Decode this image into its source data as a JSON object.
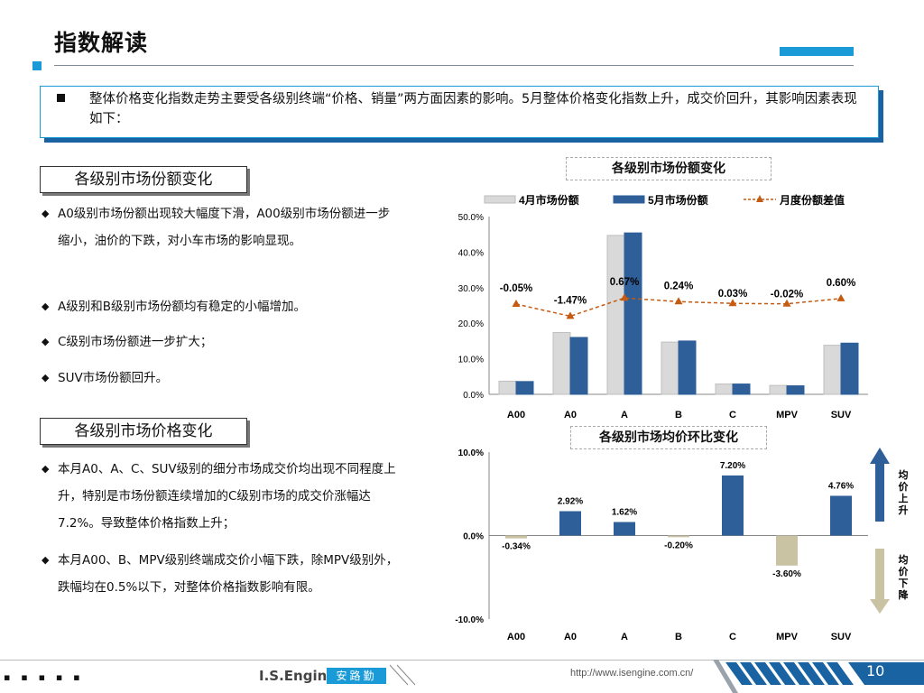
{
  "page": {
    "title": "指数解读",
    "summary": "整体价格变化指数走势主要受各级别终端“价格、销量”两方面因素的影响。5月整体价格变化指数上升，成交价回升，其影响因素表现如下："
  },
  "section1": {
    "heading": "各级别市场份额变化",
    "bullets": [
      "A0级别市场份额出现较大幅度下滑，A00级别市场份额进一步缩小，油价的下跌，对小车市场的影响显现。",
      "A级别和B级别市场份额均有稳定的小幅增加。",
      "C级别市场份额进一步扩大；",
      "SUV市场份额回升。"
    ]
  },
  "section2": {
    "heading": "各级别市场价格变化",
    "bullets": [
      "本月A0、A、C、SUV级别的细分市场成交价均出现不同程度上升，特别是市场份额连续增加的C级别市场的成交价涨幅达7.2%。导致整体价格指数上升；",
      "本月A00、B、MPV级别终端成交价小幅下跌，除MPV级别外，跌幅均在0.5%以下，对整体价格指数影响有限。"
    ]
  },
  "chart_data": [
    {
      "type": "bar",
      "title": "各级别市场份额变化",
      "categories": [
        "A00",
        "A0",
        "A",
        "B",
        "C",
        "MPV",
        "SUV"
      ],
      "series": [
        {
          "name": "4月市场份额",
          "values": [
            3.7,
            17.4,
            44.7,
            14.7,
            2.9,
            2.5,
            13.8
          ],
          "color": "#d9d9d9"
        },
        {
          "name": "5月市场份额",
          "values": [
            3.6,
            16.0,
            45.4,
            15.0,
            2.9,
            2.4,
            14.4
          ],
          "color": "#2e5f99"
        }
      ],
      "line_series": {
        "name": "月度份额差值",
        "color": "#c55a11",
        "labels": [
          "-0.05%",
          "-1.47%",
          "0.67%",
          "0.24%",
          "0.03%",
          "-0.02%",
          "0.60%"
        ],
        "values": [
          -0.05,
          -1.47,
          0.67,
          0.24,
          0.03,
          -0.02,
          0.6
        ]
      },
      "yticks": [
        "0.0%",
        "10.0%",
        "20.0%",
        "30.0%",
        "40.0%",
        "50.0%"
      ],
      "ylim": [
        0,
        50
      ]
    },
    {
      "type": "bar",
      "title": "各级别市场均价环比变化",
      "categories": [
        "A00",
        "A0",
        "A",
        "B",
        "C",
        "MPV",
        "SUV"
      ],
      "values": [
        -0.34,
        2.92,
        1.62,
        -0.2,
        7.2,
        -3.6,
        4.76
      ],
      "value_labels": [
        "-0.34%",
        "2.92%",
        "1.62%",
        "-0.20%",
        "7.20%",
        "-3.60%",
        "4.76%"
      ],
      "colors": {
        "positive": "#2e5f99",
        "negative": "#c9c2a3"
      },
      "yticks": [
        "-10.0%",
        "0.0%",
        "10.0%"
      ],
      "ylim": [
        -10,
        10
      ],
      "arrows": {
        "up_label": "均价上升",
        "down_label": "均价下降",
        "up_color": "#2e5f99",
        "down_color": "#c9c2a3"
      }
    }
  ],
  "footer": {
    "dots": "▪ ▪ ▪ ▪ ▪",
    "brand": "I.S.Engine",
    "brand_cn": "安路勤",
    "url": "http://www.isengine.com.cn/",
    "page_number": "10"
  }
}
